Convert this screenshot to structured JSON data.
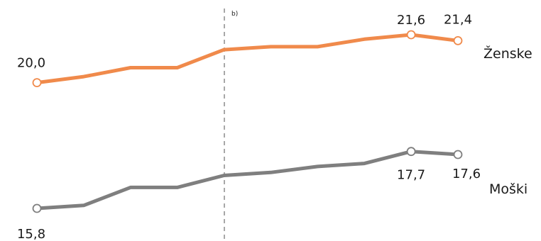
{
  "chart_data": {
    "type": "line",
    "x": [
      1,
      2,
      3,
      4,
      5,
      6,
      7,
      8,
      9,
      10
    ],
    "series": [
      {
        "name": "Ženske",
        "color": "#F08A4B",
        "values": [
          20.0,
          20.2,
          20.5,
          20.5,
          21.1,
          21.2,
          21.2,
          21.45,
          21.6,
          21.4
        ]
      },
      {
        "name": "Moški",
        "color": "#7F7F7F",
        "values": [
          15.8,
          15.9,
          16.5,
          16.5,
          16.9,
          17.0,
          17.2,
          17.3,
          17.7,
          17.6
        ]
      }
    ],
    "value_labels": [
      {
        "series": 0,
        "index": 0,
        "text": "20,0"
      },
      {
        "series": 0,
        "index": 8,
        "text": "21,6"
      },
      {
        "series": 0,
        "index": 9,
        "text": "21,4"
      },
      {
        "series": 1,
        "index": 0,
        "text": "15,8"
      },
      {
        "series": 1,
        "index": 8,
        "text": "17,7"
      },
      {
        "series": 1,
        "index": 9,
        "text": "17,6"
      }
    ],
    "series_labels": [
      "Ženske",
      "Moški"
    ],
    "break_after_index": 4,
    "break_note": "b)",
    "ylim": [
      15.0,
      22.5
    ],
    "grid": false,
    "legend": "none"
  }
}
